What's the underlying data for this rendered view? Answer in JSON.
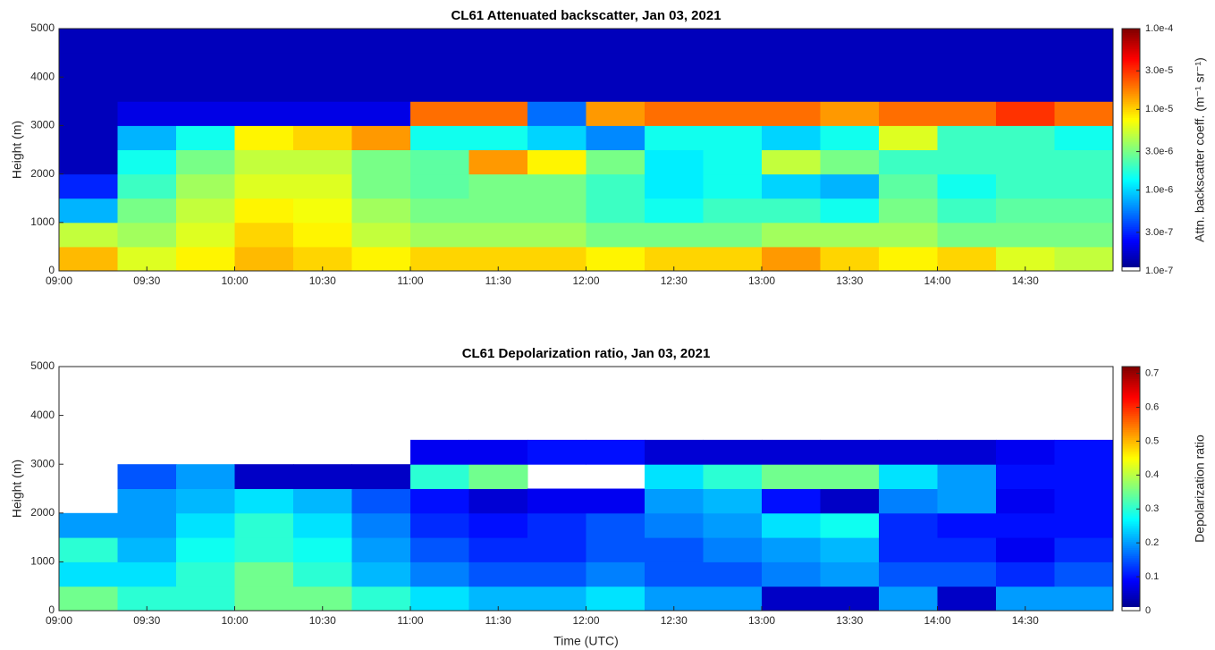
{
  "chart_data": [
    {
      "type": "heatmap",
      "title": "CL61 Attenuated backscatter, Jan 03, 2021",
      "ylabel": "Height (m)",
      "colorbar_label": "Attn. backscatter coeff. (m⁻¹ sr⁻¹)",
      "colormap": "jet",
      "log_color": true,
      "x": [
        "09:00",
        "09:20",
        "09:40",
        "10:00",
        "10:20",
        "10:40",
        "11:00",
        "11:20",
        "11:40",
        "12:00",
        "12:20",
        "12:40",
        "13:00",
        "13:20",
        "13:40",
        "14:00",
        "14:20",
        "14:40"
      ],
      "y": [
        0,
        500,
        1000,
        1500,
        2000,
        2500,
        3000,
        3500,
        4000,
        4500
      ],
      "xlim": [
        "09:00",
        "15:00"
      ],
      "ylim": [
        0,
        5000
      ],
      "xticks": [
        "09:00",
        "09:30",
        "10:00",
        "10:30",
        "11:00",
        "11:30",
        "12:00",
        "12:30",
        "13:00",
        "13:30",
        "14:00",
        "14:30"
      ],
      "yticks": [
        0,
        1000,
        2000,
        3000,
        4000,
        5000
      ],
      "clim": [
        1e-07,
        0.0001
      ],
      "cticks": [
        {
          "value": 1e-07,
          "label": "1.0e-7"
        },
        {
          "value": 3e-07,
          "label": "3.0e-7"
        },
        {
          "value": 1e-06,
          "label": "1.0e-6"
        },
        {
          "value": 3e-06,
          "label": "3.0e-6"
        },
        {
          "value": 1e-05,
          "label": "1.0e-5"
        },
        {
          "value": 3e-05,
          "label": "3.0e-5"
        },
        {
          "value": 0.0001,
          "label": "1.0e-4"
        }
      ],
      "z": [
        [
          1.2e-05,
          5e-06,
          8e-07,
          3e-07,
          1.5e-07,
          1.5e-07,
          1.5e-07,
          1.5e-07,
          1.5e-07,
          1.5e-07
        ],
        [
          6e-06,
          4e-06,
          3e-06,
          2e-06,
          1.5e-06,
          8e-07,
          2e-07,
          1.5e-07,
          1.5e-07,
          1.5e-07
        ],
        [
          8e-06,
          6e-06,
          5e-06,
          4e-06,
          3e-06,
          1.5e-06,
          2e-07,
          1.5e-07,
          1.5e-07,
          1.5e-07
        ],
        [
          1.2e-05,
          1e-05,
          8e-06,
          6e-06,
          5e-06,
          8e-06,
          2e-07,
          1.5e-07,
          1.5e-07,
          1.5e-07
        ],
        [
          1e-05,
          8e-06,
          7e-06,
          6e-06,
          5e-06,
          1e-05,
          2e-07,
          1.5e-07,
          1.5e-07,
          1.5e-07
        ],
        [
          8e-06,
          5e-06,
          4e-06,
          3e-06,
          3e-06,
          1.5e-05,
          2e-07,
          1.5e-07,
          1.5e-07,
          1.5e-07
        ],
        [
          1e-05,
          4e-06,
          3e-06,
          2.5e-06,
          2.5e-06,
          1.5e-06,
          2e-05,
          1.5e-07,
          1.5e-07,
          1.5e-07
        ],
        [
          1e-05,
          4e-06,
          3e-06,
          3e-06,
          1.5e-05,
          1.5e-06,
          2e-05,
          1.5e-07,
          1.5e-07,
          1.5e-07
        ],
        [
          1e-05,
          4e-06,
          3e-06,
          3e-06,
          8e-06,
          1e-06,
          5e-07,
          1.5e-07,
          1.5e-07,
          1.5e-07
        ],
        [
          8e-06,
          3e-06,
          2e-06,
          2e-06,
          3e-06,
          6e-07,
          1.5e-05,
          1.5e-07,
          1.5e-07,
          1.5e-07
        ],
        [
          1e-05,
          3e-06,
          1.5e-06,
          1.2e-06,
          1.2e-06,
          1.5e-06,
          2e-05,
          1.5e-07,
          1.5e-07,
          1.5e-07
        ],
        [
          1e-05,
          3e-06,
          2e-06,
          1.5e-06,
          1.5e-06,
          1.5e-06,
          2e-05,
          1.5e-07,
          1.5e-07,
          1.5e-07
        ],
        [
          1.5e-05,
          4e-06,
          2e-06,
          1e-06,
          5e-06,
          1e-06,
          2e-05,
          1.5e-07,
          1.5e-07,
          1.5e-07
        ],
        [
          1e-05,
          4e-06,
          1.5e-06,
          8e-07,
          3e-06,
          1.5e-06,
          1.5e-05,
          1.5e-07,
          1.5e-07,
          1.5e-07
        ],
        [
          8e-06,
          4e-06,
          3e-06,
          2.5e-06,
          2e-06,
          6e-06,
          2e-05,
          1.5e-07,
          1.5e-07,
          1.5e-07
        ],
        [
          1e-05,
          3e-06,
          2e-06,
          1.5e-06,
          2e-06,
          2e-06,
          2e-05,
          1.5e-07,
          1.5e-07,
          1.5e-07
        ],
        [
          6e-06,
          3e-06,
          2.5e-06,
          2e-06,
          2e-06,
          2e-06,
          3e-05,
          1.5e-07,
          1.5e-07,
          1.5e-07
        ],
        [
          5e-06,
          3e-06,
          2.5e-06,
          2e-06,
          2e-06,
          1.5e-06,
          2e-05,
          1.5e-07,
          1.5e-07,
          1.5e-07
        ]
      ]
    },
    {
      "type": "heatmap",
      "title": "CL61 Depolarization ratio, Jan 03, 2021",
      "ylabel": "Height (m)",
      "xlabel": "Time (UTC)",
      "colorbar_label": "Depolarization ratio",
      "colormap": "jet",
      "log_color": false,
      "x": [
        "09:00",
        "09:20",
        "09:40",
        "10:00",
        "10:20",
        "10:40",
        "11:00",
        "11:20",
        "11:40",
        "12:00",
        "12:20",
        "12:40",
        "13:00",
        "13:20",
        "13:40",
        "14:00",
        "14:20",
        "14:40"
      ],
      "y": [
        0,
        500,
        1000,
        1500,
        2000,
        2500,
        3000,
        3500,
        4000,
        4500
      ],
      "xlim": [
        "09:00",
        "15:00"
      ],
      "ylim": [
        0,
        5000
      ],
      "xticks": [
        "09:00",
        "09:30",
        "10:00",
        "10:30",
        "11:00",
        "11:30",
        "12:00",
        "12:30",
        "13:00",
        "13:30",
        "14:00",
        "14:30"
      ],
      "yticks": [
        0,
        1000,
        2000,
        3000,
        4000,
        5000
      ],
      "clim": [
        0,
        0.72
      ],
      "cticks": [
        0,
        0.1,
        0.2,
        0.3,
        0.4,
        0.5,
        0.6,
        0.7
      ],
      "z": [
        [
          0.35,
          0.25,
          0.3,
          0.2,
          null,
          null,
          null,
          null,
          null,
          null
        ],
        [
          0.3,
          0.25,
          0.22,
          0.2,
          0.2,
          0.15,
          null,
          null,
          null,
          null
        ],
        [
          0.3,
          0.3,
          0.28,
          0.25,
          0.22,
          0.2,
          null,
          null,
          null,
          null
        ],
        [
          0.35,
          0.35,
          0.3,
          0.3,
          0.25,
          0.05,
          null,
          null,
          null,
          null
        ],
        [
          0.35,
          0.3,
          0.28,
          0.25,
          0.22,
          0.05,
          null,
          null,
          null,
          null
        ],
        [
          0.3,
          0.22,
          0.2,
          0.18,
          0.15,
          0.05,
          null,
          null,
          null,
          null
        ],
        [
          0.25,
          0.18,
          0.15,
          0.12,
          0.1,
          0.3,
          0.08,
          null,
          null,
          null
        ],
        [
          0.22,
          0.15,
          0.12,
          0.1,
          0.06,
          0.35,
          0.08,
          null,
          null,
          null
        ],
        [
          0.22,
          0.15,
          0.12,
          0.12,
          0.08,
          null,
          0.1,
          null,
          null,
          null
        ],
        [
          0.25,
          0.18,
          0.15,
          0.15,
          0.08,
          null,
          0.1,
          null,
          null,
          null
        ],
        [
          0.2,
          0.15,
          0.15,
          0.18,
          0.2,
          0.25,
          0.06,
          null,
          null,
          null
        ],
        [
          0.2,
          0.15,
          0.18,
          0.2,
          0.22,
          0.3,
          0.06,
          null,
          null,
          null
        ],
        [
          0.05,
          0.18,
          0.2,
          0.25,
          0.1,
          0.35,
          0.06,
          null,
          null,
          null
        ],
        [
          0.05,
          0.2,
          0.22,
          0.28,
          0.05,
          0.35,
          0.06,
          null,
          null,
          null
        ],
        [
          0.2,
          0.15,
          0.12,
          0.12,
          0.18,
          0.25,
          0.06,
          null,
          null,
          null
        ],
        [
          0.05,
          0.15,
          0.12,
          0.1,
          0.2,
          0.2,
          0.06,
          null,
          null,
          null
        ],
        [
          0.2,
          0.12,
          0.08,
          0.1,
          0.08,
          0.1,
          0.08,
          null,
          null,
          null
        ],
        [
          0.2,
          0.15,
          0.12,
          0.1,
          0.1,
          0.1,
          0.1,
          null,
          null,
          null
        ]
      ]
    }
  ]
}
